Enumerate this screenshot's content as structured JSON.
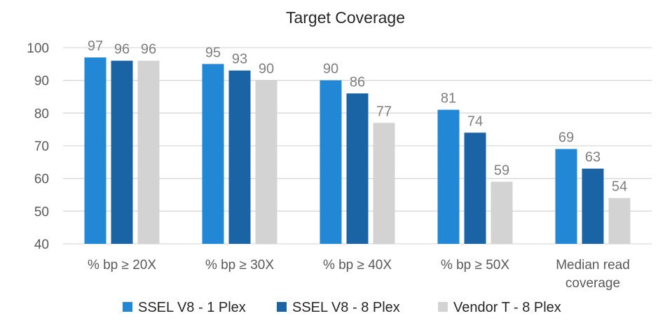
{
  "chart_data": {
    "type": "bar",
    "title": "Target Coverage",
    "categories": [
      [
        "% bp ≥ 20X"
      ],
      [
        "% bp ≥ 30X"
      ],
      [
        "% bp ≥ 40X"
      ],
      [
        "% bp ≥ 50X"
      ],
      [
        "Median read",
        "coverage"
      ]
    ],
    "series": [
      {
        "name": "SSEL V8 - 1 Plex",
        "color": "#2287d4",
        "values": [
          97,
          95,
          90,
          81,
          69
        ],
        "labels": [
          "97",
          "95",
          "90",
          "81",
          "69"
        ]
      },
      {
        "name": "SSEL V8 - 8 Plex",
        "color": "#1a63a4",
        "values": [
          96,
          93,
          86,
          74,
          63
        ],
        "labels": [
          "96",
          "93",
          "86",
          "74",
          "63"
        ]
      },
      {
        "name": "Vendor T - 8 Plex",
        "color": "#d3d3d3",
        "values": [
          96,
          90,
          77,
          59,
          54
        ],
        "labels": [
          "96",
          "90",
          "77",
          "59",
          "54"
        ]
      }
    ],
    "ylim": [
      40,
      100
    ],
    "yticks": [
      "40",
      "50",
      "60",
      "70",
      "80",
      "90",
      "100"
    ],
    "grid": true,
    "legend_position": "bottom"
  }
}
